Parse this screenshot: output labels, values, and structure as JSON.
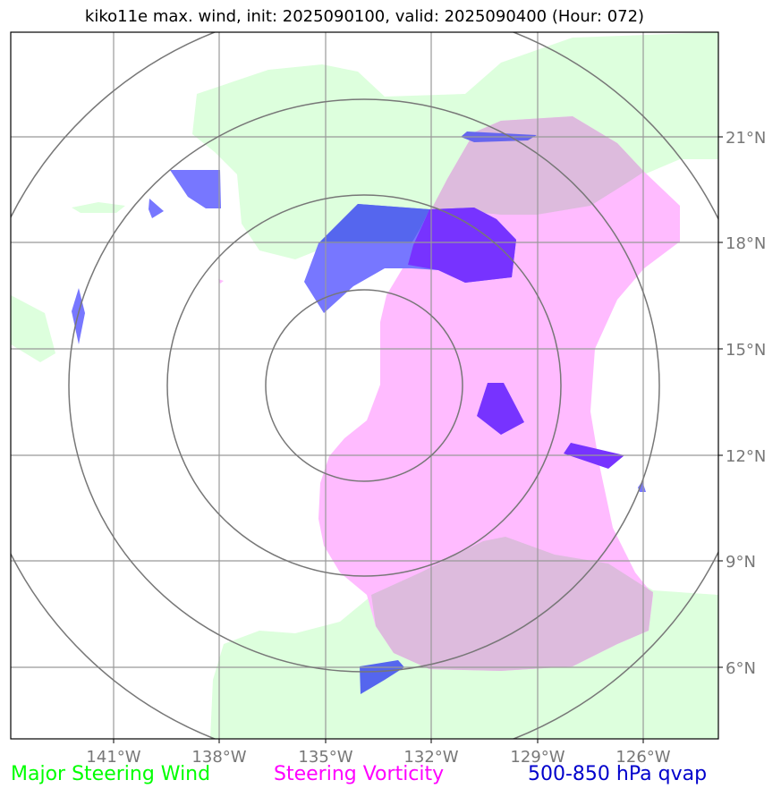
{
  "title": "kiko11e max. wind, init: 2025090100, valid: 2025090400 (Hour: 072)",
  "longitude_labels": [
    "141°W",
    "138°W",
    "135°W",
    "132°W",
    "129°W",
    "126°W"
  ],
  "latitude_labels": [
    "21°N",
    "18°N",
    "15°N",
    "12°N",
    "9°N",
    "6°N"
  ],
  "legend": [
    {
      "label": "Major Steering Wind",
      "color": "#00ff00"
    },
    {
      "label": "Steering Vorticity",
      "color": "#ff00ff"
    },
    {
      "label": "500-850 hPa qvap",
      "color": "#0000cc"
    }
  ],
  "colors": {
    "steering_wind_fill": "#ddffdd",
    "vorticity_fill": "#ffbbff",
    "overlap_fill": "#ddbbdd",
    "qvap_fill": "#7777ff",
    "qvap_strong_fill": "#7733ff",
    "range_rings": "#777777",
    "gridlines": "#999999"
  }
}
